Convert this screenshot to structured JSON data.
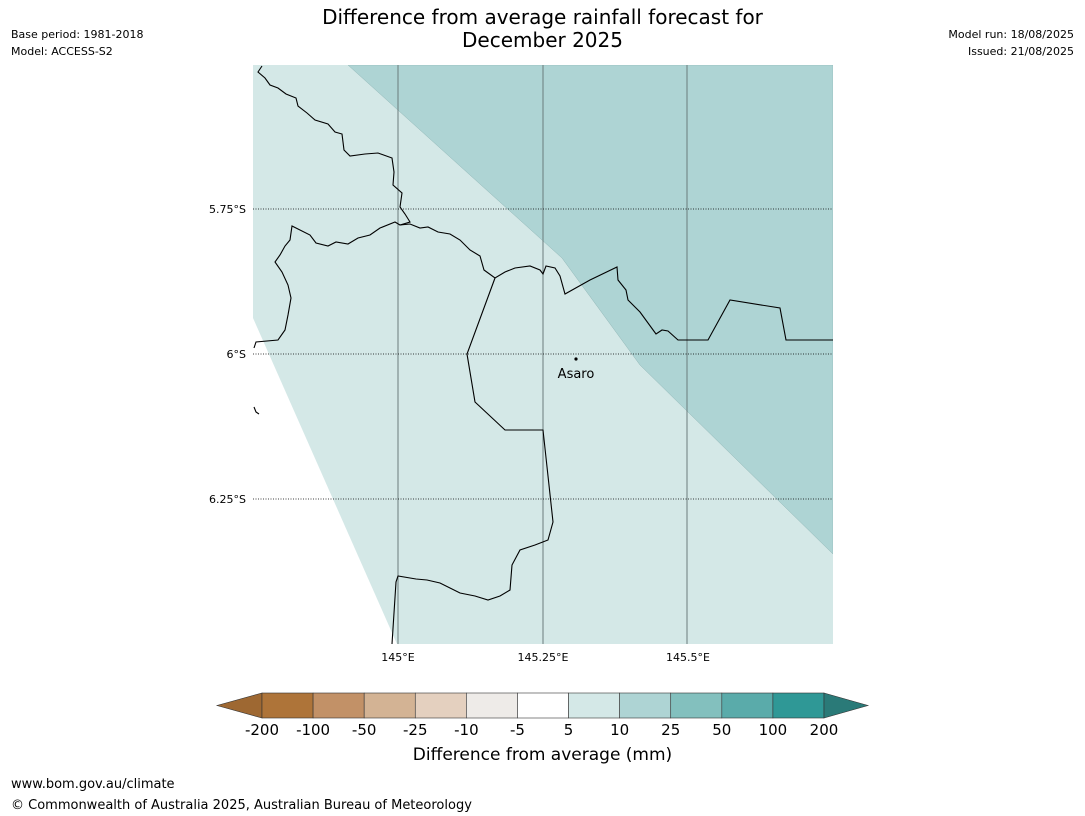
{
  "header": {
    "title_line1": "Difference from average rainfall forecast for",
    "title_line2": "December 2025",
    "base_period": "Base period: 1981-2018",
    "model": "Model: ACCESS-S2",
    "model_run": "Model run: 18/08/2025",
    "issued": "Issued: 21/08/2025"
  },
  "map": {
    "lat_labels": [
      "5.75°S",
      "6°S",
      "6.25°S"
    ],
    "lon_labels": [
      "145°E",
      "145.25°E",
      "145.5°E"
    ],
    "place": "Asaro",
    "shading_colors": {
      "5_to_10": "#d4e8e7",
      "10_to_25": "#aed4d4"
    }
  },
  "colorbar": {
    "ticks": [
      "-200",
      "-100",
      "-50",
      "-25",
      "-10",
      "-5",
      "5",
      "10",
      "25",
      "50",
      "100",
      "200"
    ],
    "colors": [
      "#9e6832",
      "#ae7439",
      "#c29167",
      "#d3b394",
      "#e4d0bf",
      "#eeebe8",
      "#ffffff",
      "#d4e8e7",
      "#aed4d4",
      "#83c0be",
      "#5aabaa",
      "#2f9896",
      "#2a7a78"
    ],
    "title": "Difference from average (mm)"
  },
  "footer": {
    "url": "www.bom.gov.au/climate",
    "copyright": "© Commonwealth of Australia 2025, Australian Bureau of Meteorology"
  }
}
